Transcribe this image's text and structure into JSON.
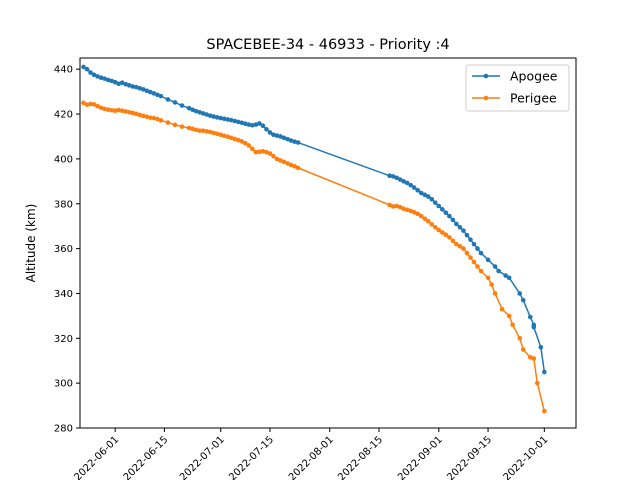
{
  "chart_data": {
    "type": "line",
    "title": "SPACEBEE-34 - 46933 - Priority :4",
    "xlabel": "",
    "ylabel": "Altitude (km)",
    "xlim": [
      "2022-05-22",
      "2022-10-10"
    ],
    "ylim": [
      280,
      445
    ],
    "x_ticks": [
      "2022-06-01",
      "2022-06-15",
      "2022-07-01",
      "2022-07-15",
      "2022-08-01",
      "2022-08-15",
      "2022-09-01",
      "2022-09-15",
      "2022-10-01"
    ],
    "y_ticks": [
      280,
      300,
      320,
      340,
      360,
      380,
      400,
      420,
      440
    ],
    "legend_position": "top-right",
    "series": [
      {
        "name": "Apogee",
        "color": "#1f77b4",
        "points": [
          [
            "2022-05-23",
            441
          ],
          [
            "2022-05-24",
            440
          ],
          [
            "2022-05-25",
            438.5
          ],
          [
            "2022-05-26",
            437.5
          ],
          [
            "2022-05-27",
            436.8
          ],
          [
            "2022-05-28",
            436.2
          ],
          [
            "2022-05-29",
            435.8
          ],
          [
            "2022-05-30",
            435.2
          ],
          [
            "2022-05-31",
            434.8
          ],
          [
            "2022-06-01",
            434.2
          ],
          [
            "2022-06-02",
            433.5
          ],
          [
            "2022-06-03",
            434
          ],
          [
            "2022-06-04",
            433.3
          ],
          [
            "2022-06-05",
            432.8
          ],
          [
            "2022-06-06",
            432.3
          ],
          [
            "2022-06-07",
            432
          ],
          [
            "2022-06-08",
            431.5
          ],
          [
            "2022-06-09",
            431
          ],
          [
            "2022-06-10",
            430.4
          ],
          [
            "2022-06-11",
            429.8
          ],
          [
            "2022-06-12",
            429.2
          ],
          [
            "2022-06-13",
            428.6
          ],
          [
            "2022-06-14",
            428
          ],
          [
            "2022-06-16",
            426.5
          ],
          [
            "2022-06-18",
            425.2
          ],
          [
            "2022-06-20",
            423.8
          ],
          [
            "2022-06-22",
            422.6
          ],
          [
            "2022-06-23",
            421.9
          ],
          [
            "2022-06-24",
            421.3
          ],
          [
            "2022-06-25",
            420.8
          ],
          [
            "2022-06-26",
            420.3
          ],
          [
            "2022-06-27",
            419.8
          ],
          [
            "2022-06-28",
            419.3
          ],
          [
            "2022-06-29",
            418.9
          ],
          [
            "2022-06-30",
            418.5
          ],
          [
            "2022-07-01",
            418.2
          ],
          [
            "2022-07-02",
            417.9
          ],
          [
            "2022-07-03",
            417.6
          ],
          [
            "2022-07-04",
            417.3
          ],
          [
            "2022-07-05",
            416.9
          ],
          [
            "2022-07-06",
            416.5
          ],
          [
            "2022-07-07",
            416.1
          ],
          [
            "2022-07-08",
            415.7
          ],
          [
            "2022-07-09",
            415.3
          ],
          [
            "2022-07-10",
            415
          ],
          [
            "2022-07-11",
            415.3
          ],
          [
            "2022-07-12",
            415.8
          ],
          [
            "2022-07-13",
            414.8
          ],
          [
            "2022-07-14",
            413.2
          ],
          [
            "2022-07-15",
            411.8
          ],
          [
            "2022-07-16",
            410.8
          ],
          [
            "2022-07-17",
            410.4
          ],
          [
            "2022-07-18",
            410
          ],
          [
            "2022-07-19",
            409.4
          ],
          [
            "2022-07-20",
            408.8
          ],
          [
            "2022-07-21",
            408.2
          ],
          [
            "2022-07-22",
            407.7
          ],
          [
            "2022-07-23",
            407.3
          ],
          [
            "2022-08-18",
            392.5
          ],
          [
            "2022-08-19",
            392.2
          ],
          [
            "2022-08-20",
            391.6
          ],
          [
            "2022-08-21",
            390.8
          ],
          [
            "2022-08-22",
            390
          ],
          [
            "2022-08-23",
            389.3
          ],
          [
            "2022-08-24",
            388.3
          ],
          [
            "2022-08-25",
            387.2
          ],
          [
            "2022-08-26",
            386
          ],
          [
            "2022-08-27",
            384.8
          ],
          [
            "2022-08-28",
            384
          ],
          [
            "2022-08-29",
            383.2
          ],
          [
            "2022-08-30",
            382
          ],
          [
            "2022-08-31",
            380.5
          ],
          [
            "2022-09-01",
            379
          ],
          [
            "2022-09-02",
            377.5
          ],
          [
            "2022-09-03",
            376
          ],
          [
            "2022-09-04",
            374.5
          ],
          [
            "2022-09-05",
            372.8
          ],
          [
            "2022-09-06",
            371
          ],
          [
            "2022-09-07",
            369.5
          ],
          [
            "2022-09-08",
            368
          ],
          [
            "2022-09-09",
            366
          ],
          [
            "2022-09-10",
            364
          ],
          [
            "2022-09-11",
            362
          ],
          [
            "2022-09-12",
            360
          ],
          [
            "2022-09-13",
            358
          ],
          [
            "2022-09-15",
            355
          ],
          [
            "2022-09-17",
            352
          ],
          [
            "2022-09-18",
            350
          ],
          [
            "2022-09-20",
            348
          ],
          [
            "2022-09-21",
            347
          ],
          [
            "2022-09-24",
            340
          ],
          [
            "2022-09-25",
            337
          ],
          [
            "2022-09-27",
            329.5
          ],
          [
            "2022-09-28",
            326
          ],
          [
            "2022-09-28",
            325
          ],
          [
            "2022-09-30",
            316
          ],
          [
            "2022-10-01",
            305
          ]
        ]
      },
      {
        "name": "Perigee",
        "color": "#ff7f0e",
        "points": [
          [
            "2022-05-23",
            425
          ],
          [
            "2022-05-24",
            424.2
          ],
          [
            "2022-05-25",
            424.5
          ],
          [
            "2022-05-26",
            424.3
          ],
          [
            "2022-05-27",
            423.5
          ],
          [
            "2022-05-28",
            422.8
          ],
          [
            "2022-05-29",
            422.3
          ],
          [
            "2022-05-30",
            422
          ],
          [
            "2022-05-31",
            421.7
          ],
          [
            "2022-06-01",
            421.5
          ],
          [
            "2022-06-02",
            421.8
          ],
          [
            "2022-06-03",
            421.5
          ],
          [
            "2022-06-04",
            421.2
          ],
          [
            "2022-06-05",
            420.8
          ],
          [
            "2022-06-06",
            420.5
          ],
          [
            "2022-06-07",
            420.1
          ],
          [
            "2022-06-08",
            419.6
          ],
          [
            "2022-06-09",
            419.2
          ],
          [
            "2022-06-10",
            418.8
          ],
          [
            "2022-06-11",
            418.4
          ],
          [
            "2022-06-12",
            418.2
          ],
          [
            "2022-06-13",
            417.8
          ],
          [
            "2022-06-14",
            417.2
          ],
          [
            "2022-06-16",
            416.2
          ],
          [
            "2022-06-18",
            415.2
          ],
          [
            "2022-06-20",
            414.4
          ],
          [
            "2022-06-22",
            413.8
          ],
          [
            "2022-06-23",
            413.4
          ],
          [
            "2022-06-24",
            413
          ],
          [
            "2022-06-25",
            412.6
          ],
          [
            "2022-06-26",
            412.6
          ],
          [
            "2022-06-27",
            412.3
          ],
          [
            "2022-06-28",
            412
          ],
          [
            "2022-06-29",
            411.6
          ],
          [
            "2022-06-30",
            411.2
          ],
          [
            "2022-07-01",
            410.8
          ],
          [
            "2022-07-02",
            410.3
          ],
          [
            "2022-07-03",
            409.9
          ],
          [
            "2022-07-04",
            409.4
          ],
          [
            "2022-07-05",
            408.9
          ],
          [
            "2022-07-06",
            408.4
          ],
          [
            "2022-07-07",
            407.8
          ],
          [
            "2022-07-08",
            407
          ],
          [
            "2022-07-09",
            406
          ],
          [
            "2022-07-10",
            404.5
          ],
          [
            "2022-07-11",
            403
          ],
          [
            "2022-07-12",
            403.2
          ],
          [
            "2022-07-13",
            403.4
          ],
          [
            "2022-07-14",
            403
          ],
          [
            "2022-07-15",
            402.4
          ],
          [
            "2022-07-16",
            401.2
          ],
          [
            "2022-07-17",
            400
          ],
          [
            "2022-07-18",
            399.3
          ],
          [
            "2022-07-19",
            398.7
          ],
          [
            "2022-07-20",
            398
          ],
          [
            "2022-07-21",
            397.3
          ],
          [
            "2022-07-22",
            396.7
          ],
          [
            "2022-07-23",
            396
          ],
          [
            "2022-08-18",
            379.5
          ],
          [
            "2022-08-19",
            378.8
          ],
          [
            "2022-08-20",
            379
          ],
          [
            "2022-08-21",
            378.5
          ],
          [
            "2022-08-22",
            377.8
          ],
          [
            "2022-08-23",
            377.3
          ],
          [
            "2022-08-24",
            376.8
          ],
          [
            "2022-08-25",
            376.2
          ],
          [
            "2022-08-26",
            375.5
          ],
          [
            "2022-08-27",
            374.5
          ],
          [
            "2022-08-28",
            373.3
          ],
          [
            "2022-08-29",
            372.2
          ],
          [
            "2022-08-30",
            370.8
          ],
          [
            "2022-08-31",
            369.5
          ],
          [
            "2022-09-01",
            368.3
          ],
          [
            "2022-09-02",
            367.2
          ],
          [
            "2022-09-03",
            366.2
          ],
          [
            "2022-09-04",
            365
          ],
          [
            "2022-09-05",
            363.5
          ],
          [
            "2022-09-06",
            362
          ],
          [
            "2022-09-07",
            361
          ],
          [
            "2022-09-08",
            360
          ],
          [
            "2022-09-09",
            358
          ],
          [
            "2022-09-10",
            356
          ],
          [
            "2022-09-11",
            354
          ],
          [
            "2022-09-12",
            352
          ],
          [
            "2022-09-13",
            350
          ],
          [
            "2022-09-15",
            347
          ],
          [
            "2022-09-16",
            344
          ],
          [
            "2022-09-17",
            340
          ],
          [
            "2022-09-19",
            333
          ],
          [
            "2022-09-21",
            330
          ],
          [
            "2022-09-22",
            326
          ],
          [
            "2022-09-24",
            320
          ],
          [
            "2022-09-25",
            315
          ],
          [
            "2022-09-27",
            311.5
          ],
          [
            "2022-09-28",
            311
          ],
          [
            "2022-09-29",
            300
          ],
          [
            "2022-10-01",
            287.5
          ]
        ]
      }
    ]
  }
}
